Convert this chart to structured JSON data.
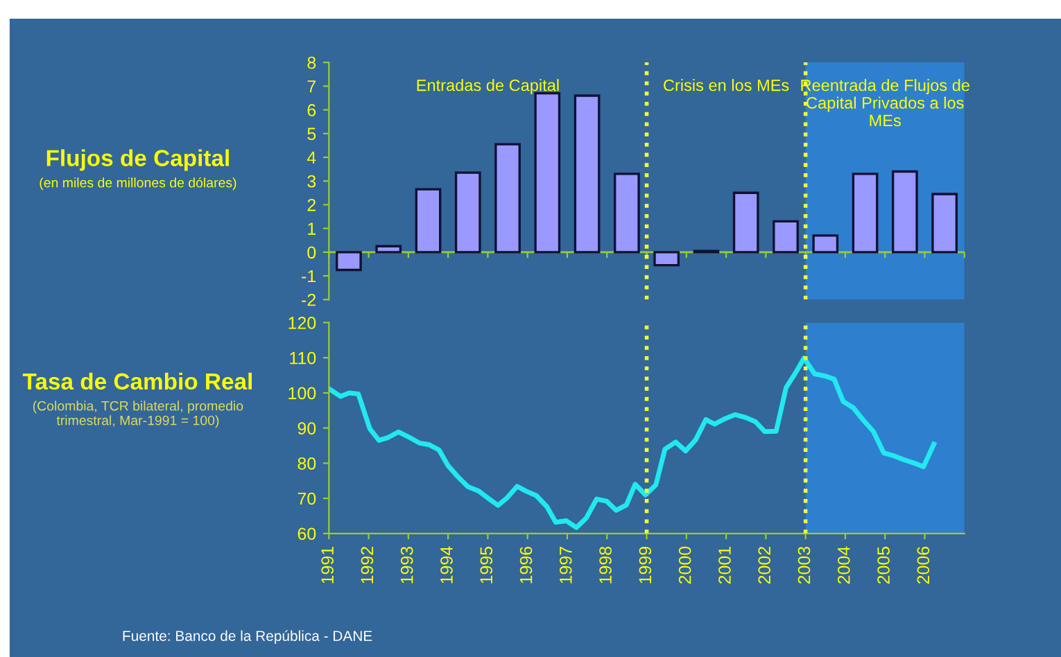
{
  "chart_data": [
    {
      "type": "bar",
      "ylabel": "Flujos de Capital",
      "x": [
        1991.5,
        1992.5,
        1993.5,
        1994.5,
        1995.5,
        1996.5,
        1997.5,
        1998.5,
        1999.5,
        2000.5,
        2001.5,
        2002.5,
        2003.5,
        2004.5,
        2005.5,
        2006.5
      ],
      "values": [
        -0.75,
        0.25,
        2.65,
        3.35,
        4.55,
        6.7,
        6.6,
        3.3,
        -0.55,
        0.05,
        2.5,
        1.3,
        0.7,
        3.3,
        3.4,
        2.45
      ],
      "color": "#9999ff",
      "xlim": [
        1991,
        2007
      ],
      "xticks": [
        1991,
        1992,
        1993,
        1994,
        1995,
        1996,
        1997,
        1998,
        1999,
        2000,
        2001,
        2002,
        2003,
        2004,
        2005,
        2006,
        2007
      ],
      "ylim": [
        -2,
        8
      ],
      "yticks": [
        -2,
        -1,
        0,
        1,
        2,
        3,
        4,
        5,
        6,
        7,
        8
      ],
      "tick_labels": "y",
      "grid": false,
      "legend": false,
      "ref_lines": [
        {
          "axis": "x",
          "value": 1999,
          "label": null,
          "color": "#ffff33",
          "line_style": "dotted"
        },
        {
          "axis": "x",
          "value": 2003,
          "label": null,
          "color": "#ffff33",
          "line_style": "dotted"
        },
        {
          "axis": "y",
          "value": 0,
          "label": null,
          "color": "#99cc33",
          "line_style": "solid"
        }
      ],
      "bands": [
        {
          "axis": "x",
          "from": 2003,
          "to": 2007,
          "label": null,
          "color": "#2f7fcf"
        }
      ],
      "annotations": [
        "(en miles de millones de dólares)",
        "Entradas de Capital",
        "Crisis en los MEs",
        "Reentrada de Flujos de\nCapital Privados a los\nMEs"
      ]
    },
    {
      "type": "line",
      "ylabel": "Tasa de Cambio Real",
      "color": "#22e8f0",
      "marker": "none",
      "line_style": "solid",
      "x": [
        1991.0,
        1991.29,
        1991.51,
        1991.74,
        1992.03,
        1992.26,
        1992.49,
        1992.75,
        1993.0,
        1993.29,
        1993.51,
        1993.77,
        1994.0,
        1994.25,
        1994.5,
        1994.77,
        1995.0,
        1995.26,
        1995.49,
        1995.74,
        1995.97,
        1996.22,
        1996.49,
        1996.71,
        1996.98,
        1997.23,
        1997.48,
        1997.74,
        1997.99,
        1998.23,
        1998.49,
        1998.71,
        1998.97,
        1999.23,
        1999.46,
        1999.73,
        1999.98,
        2000.23,
        2000.49,
        2000.71,
        2000.98,
        2001.23,
        2001.49,
        2001.74,
        2001.97,
        2002.26,
        2002.51,
        2002.77,
        2002.96,
        2003.23,
        2003.49,
        2003.72,
        2003.95,
        2004.2,
        2004.45,
        2004.71,
        2004.97,
        2005.22,
        2005.47,
        2005.74,
        2005.97,
        2006.23
      ],
      "values": [
        101.2,
        99,
        100,
        99.7,
        89.8,
        86.5,
        87.3,
        88.9,
        87.5,
        85.7,
        85.3,
        83.8,
        79.3,
        76.1,
        73.3,
        72.1,
        70.1,
        68,
        70.2,
        73.4,
        72,
        70.8,
        67.6,
        63.2,
        63.6,
        61.7,
        64.4,
        69.8,
        69.2,
        66.6,
        68.1,
        74,
        71,
        73.8,
        84,
        86,
        83.5,
        86.6,
        92.4,
        91.1,
        92.7,
        93.8,
        93,
        91.8,
        89,
        89.1,
        101.5,
        106.1,
        109.9,
        105.4,
        104.8,
        103.9,
        97.5,
        95.8,
        92.3,
        89,
        82.9,
        82.1,
        81,
        80,
        79,
        85.4
      ],
      "xlim": [
        1991,
        2007
      ],
      "xticks": [
        1991,
        1992,
        1993,
        1994,
        1995,
        1996,
        1997,
        1998,
        1999,
        2000,
        2001,
        2002,
        2003,
        2004,
        2005,
        2006
      ],
      "ylim": [
        60,
        120
      ],
      "yticks": [
        60,
        70,
        80,
        90,
        100,
        110,
        120
      ],
      "grid": false,
      "legend": false,
      "ref_lines": [
        {
          "axis": "x",
          "value": 1999,
          "label": null,
          "color": "#ffff33",
          "line_style": "dotted"
        },
        {
          "axis": "x",
          "value": 2003,
          "label": null,
          "color": "#ffff33",
          "line_style": "dotted"
        }
      ],
      "bands": [
        {
          "axis": "x",
          "from": 2003,
          "to": 2007,
          "label": null,
          "color": "#2f7fcf"
        }
      ],
      "annotations": [
        "(Colombia, TCR bilateral, promedio\ntrimestral, Mar-1991 = 100)",
        "Fuente: Banco de la República - DANE"
      ]
    }
  ]
}
